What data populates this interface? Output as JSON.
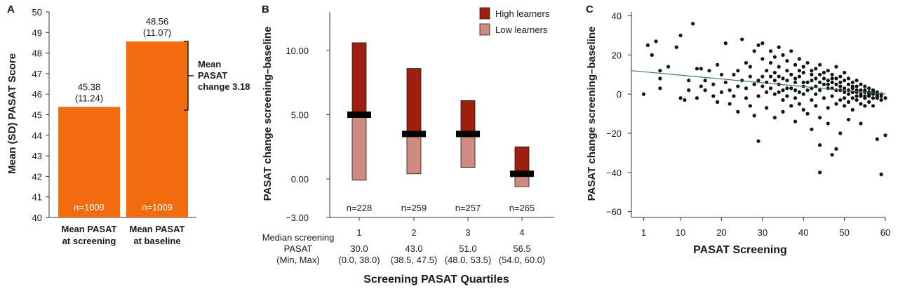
{
  "chart_data": [
    {
      "panel": "A",
      "type": "bar",
      "ylabel": "Mean (SD) PASAT Score",
      "ylim": [
        40,
        50
      ],
      "yticks": [
        "40",
        "41",
        "42",
        "43",
        "44",
        "45",
        "46",
        "47",
        "48",
        "49",
        "50"
      ],
      "categories": [
        {
          "line1": "Mean PASAT",
          "line2": "at screening"
        },
        {
          "line1": "Mean PASAT",
          "line2": "at baseline"
        }
      ],
      "values": [
        45.38,
        48.56
      ],
      "value_labels": [
        "45.38",
        "48.56"
      ],
      "sd_labels": [
        "(11.24)",
        "(11.07)"
      ],
      "n_labels": [
        "n=1009",
        "n=1009"
      ],
      "annotation": [
        "Mean",
        "PASAT",
        "change 3.18"
      ],
      "bar_color": "#f26b0f"
    },
    {
      "panel": "B",
      "type": "bar",
      "ylabel": "PASAT change screening–baseline",
      "xlabel": "Screening PASAT Quartiles",
      "yticks": [
        "−3.00",
        "0.00",
        "5.00",
        "10.00"
      ],
      "ytick_values": [
        -3,
        0,
        5,
        10
      ],
      "ylim": [
        -3,
        13
      ],
      "legend": [
        "High learners",
        "Low learners"
      ],
      "legend_position": "top-right",
      "colors": {
        "high": "#9e1f0e",
        "low": "#d08b80",
        "median": "#000000"
      },
      "quartiles": [
        {
          "label": "1",
          "median_pasat": "30.0",
          "range": "(0.0, 38.0)",
          "n": "n=228",
          "low": -0.1,
          "median": 5.0,
          "high": 10.6
        },
        {
          "label": "2",
          "median_pasat": "43.0",
          "range": "(38.5, 47.5)",
          "n": "n=259",
          "low": 0.4,
          "median": 3.5,
          "high": 8.6
        },
        {
          "label": "3",
          "median_pasat": "51.0",
          "range": "(48.0, 53.5)",
          "n": "n=257",
          "low": 0.9,
          "median": 3.5,
          "high": 6.1
        },
        {
          "label": "4",
          "median_pasat": "56.5",
          "range": "(54.0, 60.0)",
          "n": "n=265",
          "low": -0.6,
          "median": 0.4,
          "high": 2.5
        }
      ],
      "row_header": [
        "Median screening",
        "PASAT",
        "(Min, Max)"
      ]
    },
    {
      "panel": "C",
      "type": "scatter",
      "xlabel": "PASAT Screening",
      "ylabel": "PASAT change screening–baseline",
      "xlim": [
        -2,
        60
      ],
      "ylim": [
        -63,
        42
      ],
      "xticks": [
        "1",
        "10",
        "20",
        "30",
        "40",
        "50",
        "60"
      ],
      "xtick_values": [
        1,
        10,
        20,
        30,
        40,
        50,
        60
      ],
      "yticks": [
        "−60",
        "−40",
        "−20",
        "0",
        "20",
        "40"
      ],
      "ytick_values": [
        -60,
        -40,
        -20,
        0,
        20,
        40
      ],
      "trend_line": {
        "x": [
          -2,
          60
        ],
        "y": [
          12,
          0
        ]
      },
      "points": [
        [
          1,
          0
        ],
        [
          2,
          25
        ],
        [
          3,
          20
        ],
        [
          4,
          27
        ],
        [
          5,
          12
        ],
        [
          5,
          8
        ],
        [
          5,
          3
        ],
        [
          7,
          14
        ],
        [
          9,
          24
        ],
        [
          10,
          30
        ],
        [
          10,
          -2
        ],
        [
          11,
          -3
        ],
        [
          12,
          7
        ],
        [
          13,
          36
        ],
        [
          14,
          13
        ],
        [
          15,
          13
        ],
        [
          16,
          2
        ],
        [
          17,
          12
        ],
        [
          18,
          5
        ],
        [
          19,
          15
        ],
        [
          20,
          1
        ],
        [
          21,
          26
        ],
        [
          21,
          6
        ],
        [
          22,
          2
        ],
        [
          22,
          -5
        ],
        [
          23,
          10
        ],
        [
          24,
          -9
        ],
        [
          24,
          12
        ],
        [
          25,
          28
        ],
        [
          25,
          7
        ],
        [
          26,
          3
        ],
        [
          26,
          16
        ],
        [
          27,
          14
        ],
        [
          27,
          -6
        ],
        [
          28,
          22
        ],
        [
          28,
          5
        ],
        [
          28,
          -11
        ],
        [
          29,
          25
        ],
        [
          29,
          -24
        ],
        [
          29,
          -1
        ],
        [
          30,
          26
        ],
        [
          30,
          18
        ],
        [
          30,
          4
        ],
        [
          31,
          1
        ],
        [
          31,
          12
        ],
        [
          31,
          -7
        ],
        [
          32,
          22
        ],
        [
          32,
          16
        ],
        [
          32,
          9
        ],
        [
          33,
          0
        ],
        [
          33,
          19
        ],
        [
          33,
          -12
        ],
        [
          34,
          14
        ],
        [
          34,
          24
        ],
        [
          34,
          5
        ],
        [
          35,
          8
        ],
        [
          35,
          -3
        ],
        [
          35,
          20
        ],
        [
          35,
          -9
        ],
        [
          36,
          17
        ],
        [
          36,
          3
        ],
        [
          36,
          12
        ],
        [
          37,
          10
        ],
        [
          37,
          -6
        ],
        [
          37,
          22
        ],
        [
          38,
          15
        ],
        [
          38,
          6
        ],
        [
          38,
          -2
        ],
        [
          38,
          -14
        ],
        [
          39,
          18
        ],
        [
          39,
          9
        ],
        [
          39,
          1
        ],
        [
          39,
          -5
        ],
        [
          40,
          11
        ],
        [
          40,
          14
        ],
        [
          40,
          4
        ],
        [
          40,
          -8
        ],
        [
          41,
          16
        ],
        [
          41,
          2
        ],
        [
          41,
          -10
        ],
        [
          42,
          12
        ],
        [
          42,
          7
        ],
        [
          42,
          -3
        ],
        [
          42,
          -18
        ],
        [
          43,
          13
        ],
        [
          43,
          8
        ],
        [
          43,
          0
        ],
        [
          43,
          -6
        ],
        [
          44,
          15
        ],
        [
          44,
          10
        ],
        [
          44,
          -40
        ],
        [
          44,
          -26
        ],
        [
          44,
          -12
        ],
        [
          45,
          11
        ],
        [
          45,
          5
        ],
        [
          45,
          -2
        ],
        [
          46,
          12
        ],
        [
          46,
          3
        ],
        [
          46,
          -7
        ],
        [
          46,
          -15
        ],
        [
          47,
          10
        ],
        [
          47,
          6
        ],
        [
          47,
          -1
        ],
        [
          47,
          -31
        ],
        [
          48,
          14
        ],
        [
          48,
          8
        ],
        [
          48,
          2
        ],
        [
          48,
          -5
        ],
        [
          48,
          -28
        ],
        [
          49,
          9
        ],
        [
          49,
          4
        ],
        [
          49,
          -3
        ],
        [
          49,
          -20
        ],
        [
          50,
          11
        ],
        [
          50,
          7
        ],
        [
          50,
          1
        ],
        [
          50,
          -6
        ],
        [
          51,
          8
        ],
        [
          51,
          5
        ],
        [
          51,
          0
        ],
        [
          51,
          -4
        ],
        [
          51,
          -13
        ],
        [
          52,
          6
        ],
        [
          52,
          3
        ],
        [
          52,
          -2
        ],
        [
          52,
          -8
        ],
        [
          53,
          7
        ],
        [
          53,
          4
        ],
        [
          53,
          1
        ],
        [
          53,
          -3
        ],
        [
          54,
          5
        ],
        [
          54,
          2
        ],
        [
          54,
          -1
        ],
        [
          54,
          -5
        ],
        [
          54,
          -15
        ],
        [
          55,
          4
        ],
        [
          55,
          1
        ],
        [
          55,
          -2
        ],
        [
          55,
          -6
        ],
        [
          56,
          3
        ],
        [
          56,
          1
        ],
        [
          56,
          -1
        ],
        [
          56,
          -4
        ],
        [
          57,
          2
        ],
        [
          57,
          0
        ],
        [
          57,
          -2
        ],
        [
          57,
          -6
        ],
        [
          58,
          1
        ],
        [
          58,
          0
        ],
        [
          58,
          -2
        ],
        [
          58,
          -23
        ],
        [
          59,
          0
        ],
        [
          59,
          -1
        ],
        [
          59,
          -3
        ],
        [
          59,
          -41
        ],
        [
          60,
          -21
        ],
        [
          60,
          -2
        ],
        [
          36,
          -1
        ],
        [
          37,
          3
        ],
        [
          38,
          8
        ],
        [
          39,
          12
        ],
        [
          40,
          0
        ],
        [
          41,
          6
        ],
        [
          42,
          3
        ],
        [
          43,
          4
        ],
        [
          44,
          2
        ],
        [
          45,
          8
        ],
        [
          46,
          7
        ],
        [
          47,
          3
        ],
        [
          48,
          5
        ],
        [
          49,
          6
        ],
        [
          50,
          3
        ],
        [
          51,
          2
        ],
        [
          52,
          1
        ],
        [
          53,
          -1
        ],
        [
          54,
          0
        ],
        [
          55,
          -1
        ],
        [
          30,
          9
        ],
        [
          31,
          6
        ],
        [
          32,
          3
        ],
        [
          33,
          7
        ],
        [
          34,
          1
        ],
        [
          35,
          2
        ],
        [
          33,
          11
        ],
        [
          34,
          9
        ],
        [
          36,
          7
        ],
        [
          38,
          2
        ],
        [
          40,
          6
        ],
        [
          42,
          10
        ],
        [
          44,
          6
        ],
        [
          46,
          5
        ],
        [
          47,
          8
        ],
        [
          49,
          2
        ],
        [
          50,
          -2
        ],
        [
          52,
          4
        ],
        [
          53,
          2
        ],
        [
          55,
          2
        ],
        [
          56,
          0
        ],
        [
          57,
          1
        ],
        [
          58,
          -1
        ],
        [
          29,
          7
        ],
        [
          27,
          9
        ],
        [
          26,
          -2
        ],
        [
          24,
          4
        ],
        [
          23,
          -1
        ],
        [
          20,
          10
        ],
        [
          19,
          -4
        ],
        [
          18,
          -1
        ],
        [
          16,
          7
        ],
        [
          15,
          4
        ],
        [
          14,
          -2
        ],
        [
          12,
          2
        ]
      ],
      "point_color": "#111111",
      "line_color": "#3f6f6f"
    }
  ]
}
